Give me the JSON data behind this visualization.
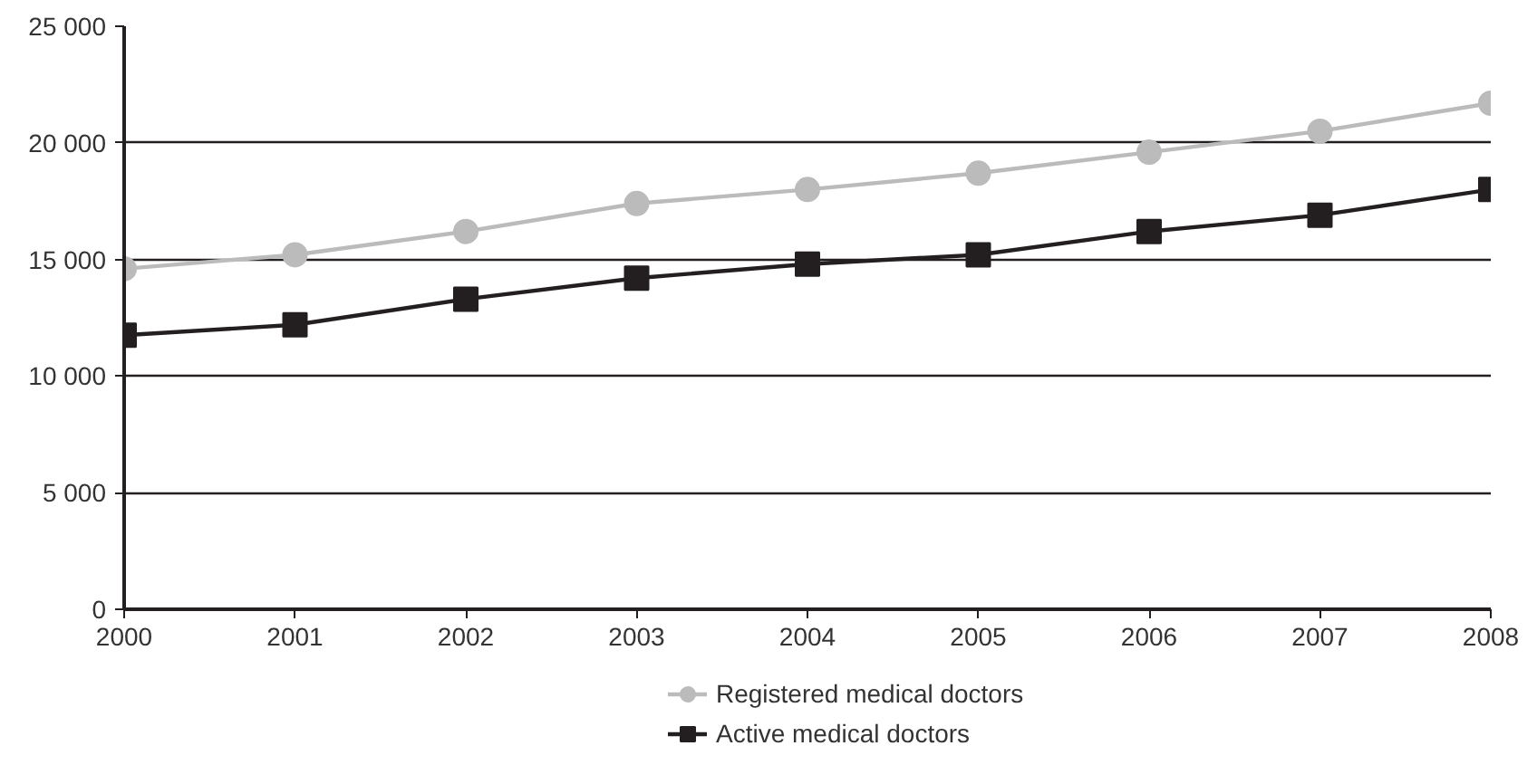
{
  "chart_data": {
    "type": "line",
    "x": [
      2000,
      2001,
      2002,
      2003,
      2004,
      2005,
      2006,
      2007,
      2008
    ],
    "series": [
      {
        "name": "Registered medical doctors",
        "color": "#bbbbbb",
        "marker": "circle",
        "values": [
          14600,
          15200,
          16200,
          17400,
          18000,
          18700,
          19600,
          20500,
          21700
        ]
      },
      {
        "name": "Active medical doctors",
        "color": "#231f20",
        "marker": "square",
        "values": [
          11750,
          12200,
          13300,
          14200,
          14800,
          15200,
          16200,
          16900,
          18000
        ]
      }
    ],
    "xlim": [
      2000,
      2008
    ],
    "xticks": [
      2000,
      2001,
      2002,
      2003,
      2004,
      2005,
      2006,
      2007,
      2008
    ],
    "ylim": [
      0,
      25000
    ],
    "yticks": [
      {
        "value": 0,
        "label": "0"
      },
      {
        "value": 5000,
        "label": "5 000"
      },
      {
        "value": 10000,
        "label": "10 000"
      },
      {
        "value": 15000,
        "label": "15 000"
      },
      {
        "value": 20000,
        "label": "20 000"
      },
      {
        "value": 25000,
        "label": "25 000"
      }
    ],
    "grid": "y",
    "legend": "bottom"
  }
}
